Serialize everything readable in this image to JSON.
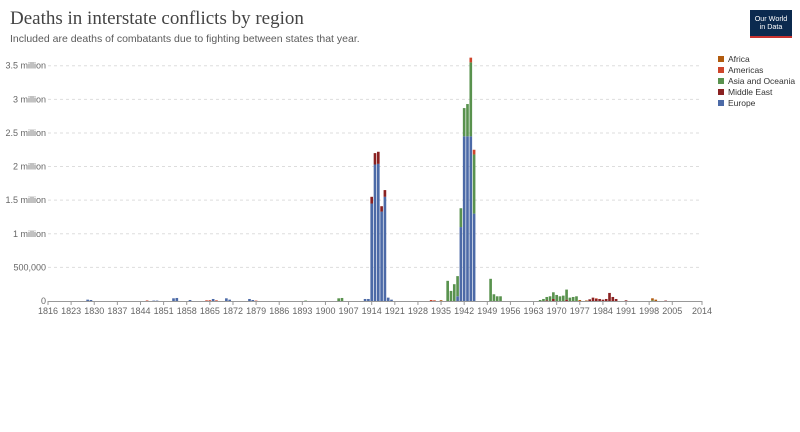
{
  "title": "Deaths in interstate conflicts by region",
  "subtitle": "Included are deaths of combatants due to fighting between states that year.",
  "logo": {
    "line1": "Our World",
    "line2": "in Data"
  },
  "chart_data": {
    "type": "bar",
    "stacked": true,
    "x_start": 1816,
    "x_end": 2014,
    "ylim": [
      0,
      3600000
    ],
    "y_ticks": [
      {
        "value": 0,
        "label": "0"
      },
      {
        "value": 500000,
        "label": "500,000"
      },
      {
        "value": 1000000,
        "label": "1 million"
      },
      {
        "value": 1500000,
        "label": "1.5 million"
      },
      {
        "value": 2000000,
        "label": "2 million"
      },
      {
        "value": 2500000,
        "label": "2.5 million"
      },
      {
        "value": 3000000,
        "label": "3 million"
      },
      {
        "value": 3500000,
        "label": "3.5 million"
      }
    ],
    "x_ticks": [
      "1816",
      "1823",
      "1830",
      "1837",
      "1844",
      "1851",
      "1858",
      "1865",
      "1872",
      "1879",
      "1886",
      "1893",
      "1900",
      "1907",
      "1914",
      "1921",
      "1928",
      "1935",
      "1942",
      "1949",
      "1956",
      "1963",
      "1970",
      "1977",
      "1984",
      "1991",
      "1998",
      "2005",
      "2014"
    ],
    "legend_position": "right",
    "series": [
      {
        "name": "Africa",
        "color": "#b15b0e"
      },
      {
        "name": "Americas",
        "color": "#ce452b"
      },
      {
        "name": "Asia and Oceania",
        "color": "#59924e"
      },
      {
        "name": "Middle East",
        "color": "#8a2121"
      },
      {
        "name": "Europe",
        "color": "#4c6aa7"
      }
    ],
    "bars": [
      {
        "year": 1828,
        "values": [
          0,
          0,
          0,
          0,
          20000
        ]
      },
      {
        "year": 1829,
        "values": [
          0,
          0,
          0,
          0,
          15000
        ]
      },
      {
        "year": 1846,
        "values": [
          0,
          8000,
          0,
          0,
          0
        ]
      },
      {
        "year": 1848,
        "values": [
          0,
          0,
          0,
          0,
          6000
        ]
      },
      {
        "year": 1849,
        "values": [
          0,
          0,
          0,
          0,
          6000
        ]
      },
      {
        "year": 1854,
        "values": [
          0,
          0,
          0,
          0,
          40000
        ]
      },
      {
        "year": 1855,
        "values": [
          0,
          0,
          0,
          0,
          45000
        ]
      },
      {
        "year": 1859,
        "values": [
          0,
          0,
          0,
          0,
          15000
        ]
      },
      {
        "year": 1864,
        "values": [
          0,
          10000,
          0,
          0,
          0
        ]
      },
      {
        "year": 1865,
        "values": [
          0,
          12000,
          0,
          0,
          0
        ]
      },
      {
        "year": 1866,
        "values": [
          0,
          0,
          0,
          0,
          30000
        ]
      },
      {
        "year": 1867,
        "values": [
          0,
          10000,
          0,
          0,
          0
        ]
      },
      {
        "year": 1870,
        "values": [
          0,
          0,
          0,
          0,
          40000
        ]
      },
      {
        "year": 1871,
        "values": [
          0,
          0,
          0,
          0,
          20000
        ]
      },
      {
        "year": 1877,
        "values": [
          0,
          0,
          0,
          0,
          30000
        ]
      },
      {
        "year": 1878,
        "values": [
          0,
          0,
          0,
          0,
          15000
        ]
      },
      {
        "year": 1879,
        "values": [
          0,
          6000,
          0,
          0,
          0
        ]
      },
      {
        "year": 1894,
        "values": [
          0,
          0,
          6000,
          0,
          0
        ]
      },
      {
        "year": 1904,
        "values": [
          0,
          0,
          40000,
          0,
          0
        ]
      },
      {
        "year": 1905,
        "values": [
          0,
          0,
          45000,
          0,
          0
        ]
      },
      {
        "year": 1912,
        "values": [
          0,
          0,
          0,
          0,
          30000
        ]
      },
      {
        "year": 1913,
        "values": [
          0,
          0,
          0,
          0,
          30000
        ]
      },
      {
        "year": 1914,
        "values": [
          0,
          0,
          0,
          100000,
          1450000
        ]
      },
      {
        "year": 1915,
        "values": [
          0,
          0,
          0,
          170000,
          2030000
        ]
      },
      {
        "year": 1916,
        "values": [
          0,
          0,
          0,
          180000,
          2040000
        ]
      },
      {
        "year": 1917,
        "values": [
          0,
          0,
          0,
          80000,
          1330000
        ]
      },
      {
        "year": 1918,
        "values": [
          0,
          0,
          0,
          100000,
          1550000
        ]
      },
      {
        "year": 1919,
        "values": [
          0,
          0,
          0,
          0,
          50000
        ]
      },
      {
        "year": 1920,
        "values": [
          0,
          0,
          0,
          0,
          20000
        ]
      },
      {
        "year": 1932,
        "values": [
          0,
          15000,
          0,
          0,
          0
        ]
      },
      {
        "year": 1933,
        "values": [
          0,
          10000,
          0,
          0,
          0
        ]
      },
      {
        "year": 1935,
        "values": [
          12000,
          0,
          0,
          0,
          0
        ]
      },
      {
        "year": 1937,
        "values": [
          0,
          0,
          300000,
          0,
          0
        ]
      },
      {
        "year": 1938,
        "values": [
          0,
          0,
          150000,
          0,
          0
        ]
      },
      {
        "year": 1939,
        "values": [
          0,
          0,
          250000,
          0,
          0
        ]
      },
      {
        "year": 1940,
        "values": [
          0,
          0,
          300000,
          0,
          70000
        ]
      },
      {
        "year": 1941,
        "values": [
          0,
          0,
          280000,
          0,
          1100000
        ]
      },
      {
        "year": 1942,
        "values": [
          0,
          0,
          420000,
          0,
          2450000
        ]
      },
      {
        "year": 1943,
        "values": [
          0,
          0,
          480000,
          0,
          2450000
        ]
      },
      {
        "year": 1944,
        "values": [
          0,
          70000,
          1100000,
          0,
          2450000
        ]
      },
      {
        "year": 1945,
        "values": [
          0,
          70000,
          880000,
          0,
          1300000
        ]
      },
      {
        "year": 1950,
        "values": [
          0,
          0,
          330000,
          0,
          0
        ]
      },
      {
        "year": 1951,
        "values": [
          0,
          0,
          100000,
          0,
          0
        ]
      },
      {
        "year": 1952,
        "values": [
          0,
          0,
          70000,
          0,
          0
        ]
      },
      {
        "year": 1953,
        "values": [
          0,
          0,
          70000,
          0,
          0
        ]
      },
      {
        "year": 1965,
        "values": [
          0,
          0,
          15000,
          0,
          0
        ]
      },
      {
        "year": 1966,
        "values": [
          0,
          0,
          30000,
          0,
          0
        ]
      },
      {
        "year": 1967,
        "values": [
          0,
          0,
          50000,
          10000,
          0
        ]
      },
      {
        "year": 1968,
        "values": [
          0,
          0,
          70000,
          0,
          0
        ]
      },
      {
        "year": 1969,
        "values": [
          0,
          0,
          100000,
          30000,
          0
        ]
      },
      {
        "year": 1970,
        "values": [
          0,
          0,
          90000,
          0,
          0
        ]
      },
      {
        "year": 1971,
        "values": [
          0,
          0,
          70000,
          0,
          0
        ]
      },
      {
        "year": 1972,
        "values": [
          0,
          0,
          80000,
          0,
          0
        ]
      },
      {
        "year": 1973,
        "values": [
          0,
          0,
          150000,
          20000,
          0
        ]
      },
      {
        "year": 1974,
        "values": [
          0,
          0,
          50000,
          0,
          0
        ]
      },
      {
        "year": 1975,
        "values": [
          0,
          0,
          60000,
          0,
          0
        ]
      },
      {
        "year": 1976,
        "values": [
          0,
          0,
          70000,
          0,
          0
        ]
      },
      {
        "year": 1977,
        "values": [
          15000,
          0,
          0,
          0,
          0
        ]
      },
      {
        "year": 1979,
        "values": [
          8000,
          0,
          0,
          0,
          0
        ]
      },
      {
        "year": 1980,
        "values": [
          0,
          0,
          0,
          25000,
          0
        ]
      },
      {
        "year": 1981,
        "values": [
          0,
          0,
          0,
          50000,
          0
        ]
      },
      {
        "year": 1982,
        "values": [
          0,
          10000,
          0,
          30000,
          0
        ]
      },
      {
        "year": 1983,
        "values": [
          0,
          0,
          0,
          30000,
          0
        ]
      },
      {
        "year": 1984,
        "values": [
          0,
          0,
          0,
          20000,
          0
        ]
      },
      {
        "year": 1985,
        "values": [
          0,
          0,
          0,
          30000,
          0
        ]
      },
      {
        "year": 1986,
        "values": [
          0,
          0,
          0,
          120000,
          0
        ]
      },
      {
        "year": 1987,
        "values": [
          0,
          0,
          0,
          60000,
          0
        ]
      },
      {
        "year": 1988,
        "values": [
          0,
          0,
          0,
          30000,
          0
        ]
      },
      {
        "year": 1991,
        "values": [
          0,
          0,
          0,
          10000,
          0
        ]
      },
      {
        "year": 1999,
        "values": [
          30000,
          0,
          10000,
          0,
          0
        ]
      },
      {
        "year": 2000,
        "values": [
          20000,
          0,
          0,
          0,
          0
        ]
      },
      {
        "year": 2003,
        "values": [
          0,
          0,
          0,
          6000,
          0
        ]
      }
    ]
  }
}
